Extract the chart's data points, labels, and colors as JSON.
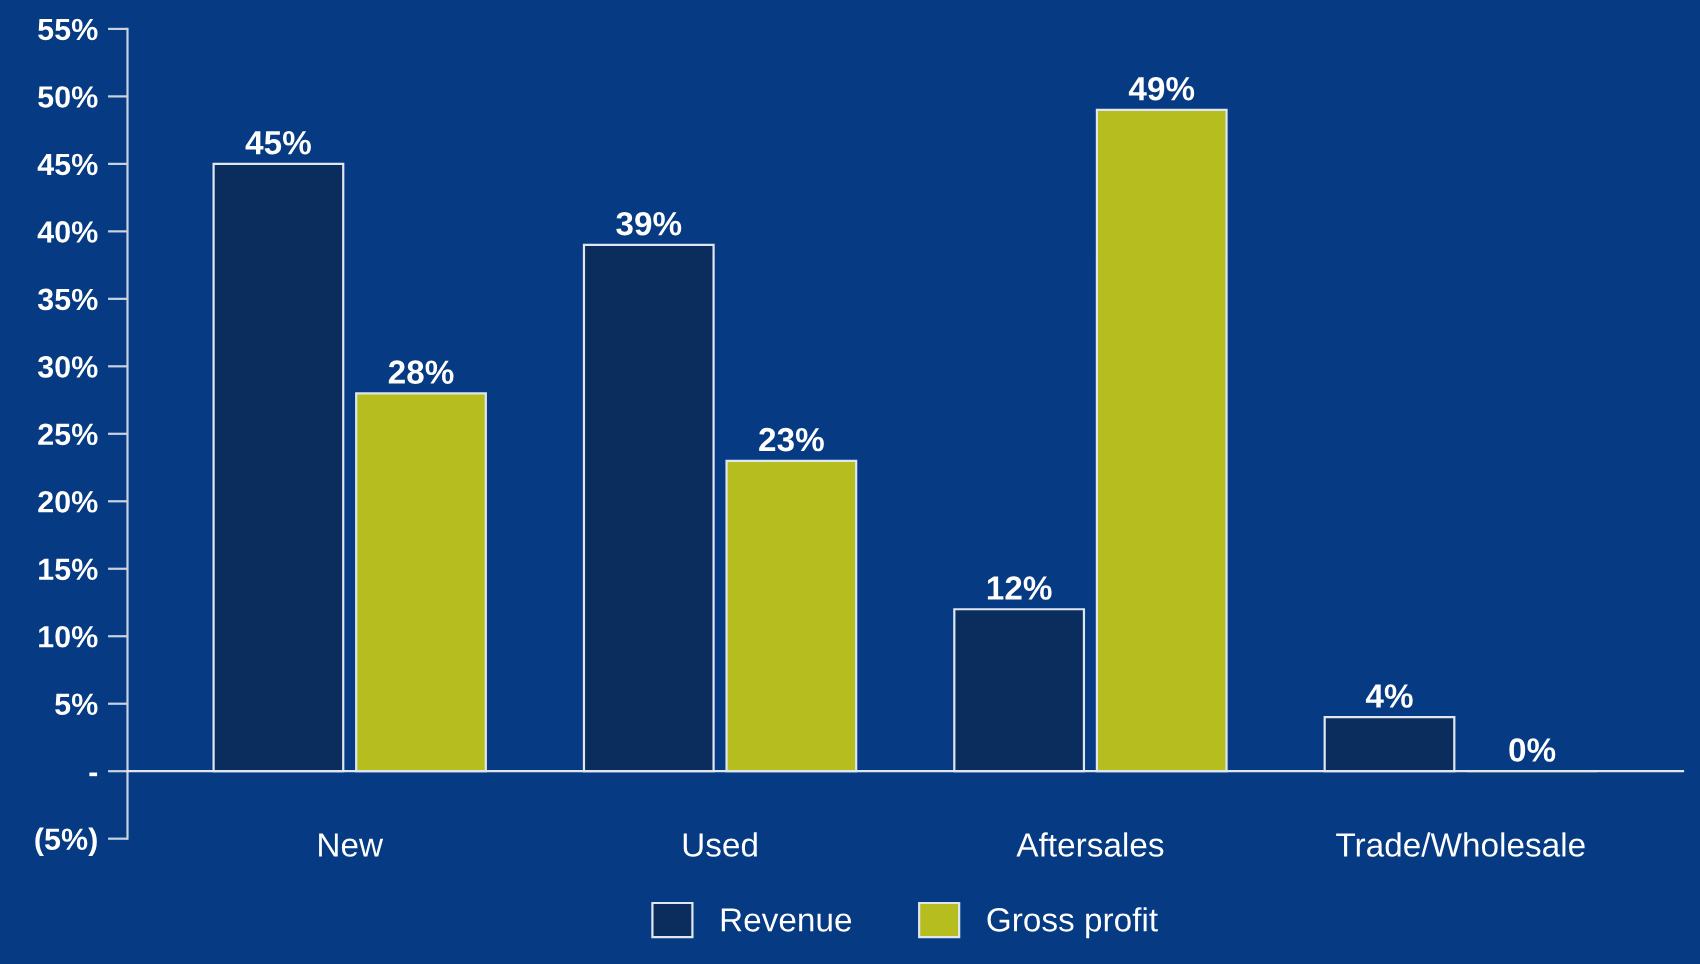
{
  "chart_data": {
    "type": "bar",
    "categories": [
      "New",
      "Used",
      "Aftersales",
      "Trade/Wholesale"
    ],
    "series": [
      {
        "name": "Revenue",
        "color": "#0b2d5e",
        "values": [
          45,
          39,
          12,
          4
        ],
        "value_labels": [
          "45%",
          "39%",
          "12%",
          "4%"
        ]
      },
      {
        "name": "Gross profit",
        "color": "#b5be1e",
        "values": [
          28,
          23,
          49,
          0
        ],
        "value_labels": [
          "28%",
          "23%",
          "49%",
          "0%"
        ]
      }
    ],
    "ylim": [
      -5,
      55
    ],
    "yticks": [
      {
        "value": -5,
        "label": "(5%)"
      },
      {
        "value": 0,
        "label": "-"
      },
      {
        "value": 5,
        "label": "5%"
      },
      {
        "value": 10,
        "label": "10%"
      },
      {
        "value": 15,
        "label": "15%"
      },
      {
        "value": 20,
        "label": "20%"
      },
      {
        "value": 25,
        "label": "25%"
      },
      {
        "value": 30,
        "label": "30%"
      },
      {
        "value": 35,
        "label": "35%"
      },
      {
        "value": 40,
        "label": "40%"
      },
      {
        "value": 45,
        "label": "45%"
      },
      {
        "value": 50,
        "label": "50%"
      },
      {
        "value": 55,
        "label": "55%"
      }
    ],
    "grid": false,
    "legend": "bottom"
  }
}
